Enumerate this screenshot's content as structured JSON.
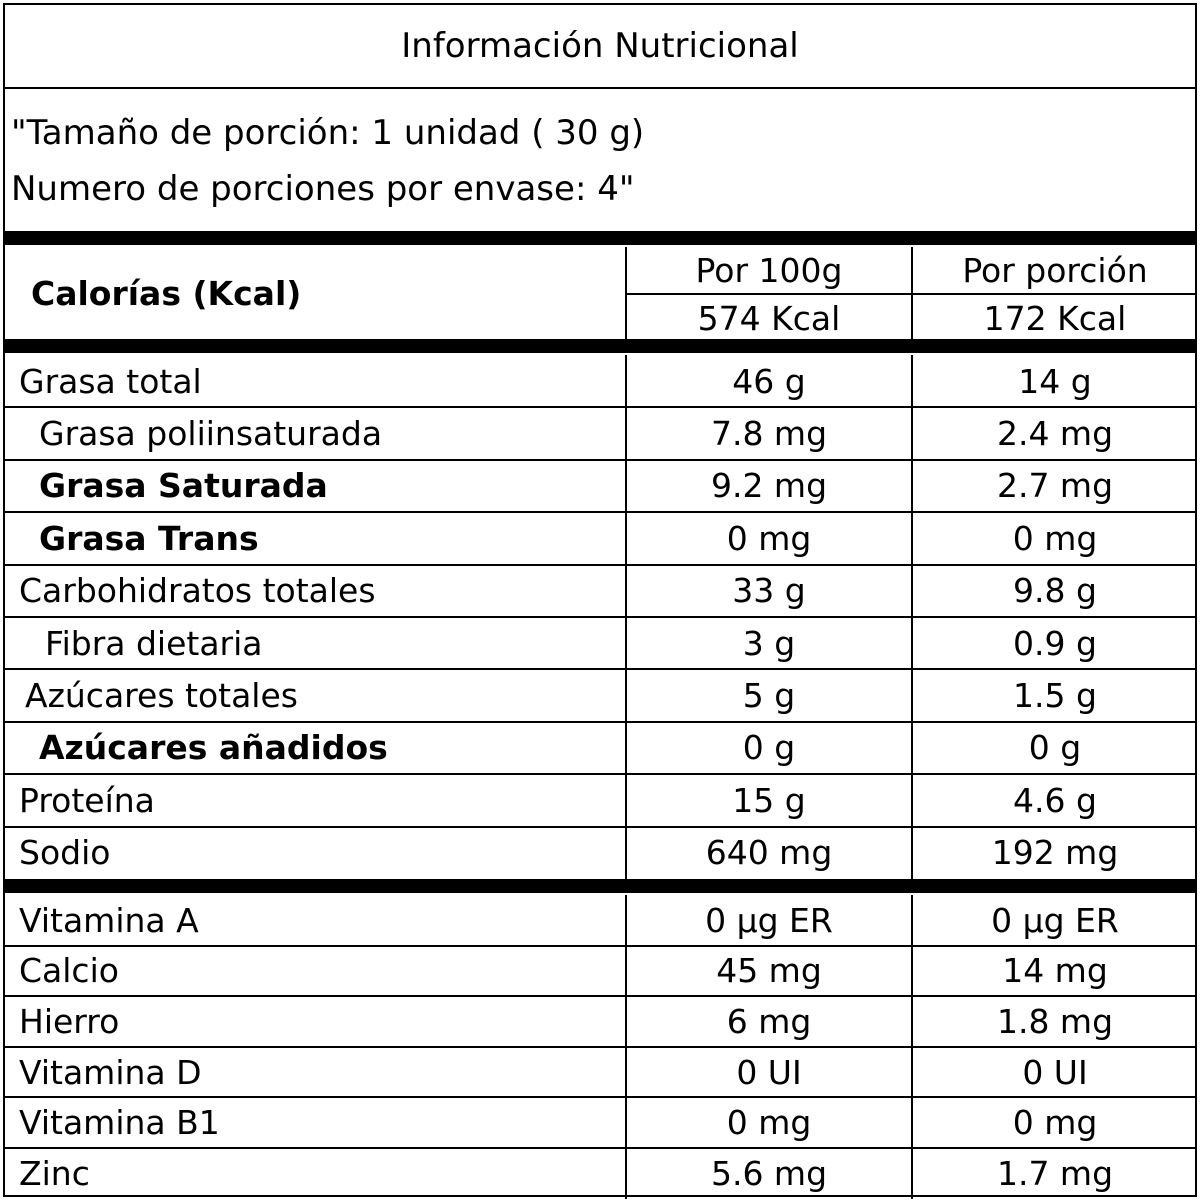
{
  "title": "Información Nutricional",
  "serving": {
    "line1": "\"Tamaño de porción: 1 unidad ( 30 g)",
    "line2": "Numero de porciones por envase: 4\""
  },
  "calories": {
    "label": "Calorías (Kcal)",
    "col1_header": "Por 100g",
    "col2_header": "Por porción",
    "col1_value": "574 Kcal",
    "col2_value": "172 Kcal"
  },
  "nutrients": [
    {
      "name": "Grasa total",
      "per100": "46 g",
      "perServing": "14 g"
    },
    {
      "name": "Grasa poliinsaturada",
      "per100": "7.8 mg",
      "perServing": "2.4 mg"
    },
    {
      "name": "Grasa Saturada",
      "per100": "9.2 mg",
      "perServing": "2.7 mg"
    },
    {
      "name": "Grasa Trans",
      "per100": "0 mg",
      "perServing": "0 mg"
    },
    {
      "name": "Carbohidratos totales",
      "per100": "33 g",
      "perServing": "9.8 g"
    },
    {
      "name": "Fibra dietaria",
      "per100": "3 g",
      "perServing": "0.9 g"
    },
    {
      "name": "Azúcares totales",
      "per100": "5 g",
      "perServing": "1.5 g"
    },
    {
      "name": "Azúcares añadidos",
      "per100": "0 g",
      "perServing": "0 g"
    },
    {
      "name": "Proteína",
      "per100": "15 g",
      "perServing": "4.6 g"
    },
    {
      "name": "Sodio",
      "per100": "640 mg",
      "perServing": "192 mg"
    }
  ],
  "vitamins": [
    {
      "name": "Vitamina A",
      "per100": "0 µg ER",
      "perServing": "0 µg ER"
    },
    {
      "name": "Calcio",
      "per100": "45 mg",
      "perServing": "14 mg"
    },
    {
      "name": "Hierro",
      "per100": "6 mg",
      "perServing": "1.8 mg"
    },
    {
      "name": "Vitamina D",
      "per100": "0 UI",
      "perServing": "0 UI"
    },
    {
      "name": "Vitamina B1",
      "per100": "0 mg",
      "perServing": "0 mg"
    },
    {
      "name": "Zinc",
      "per100": "5.6 mg",
      "perServing": "1.7 mg"
    }
  ]
}
